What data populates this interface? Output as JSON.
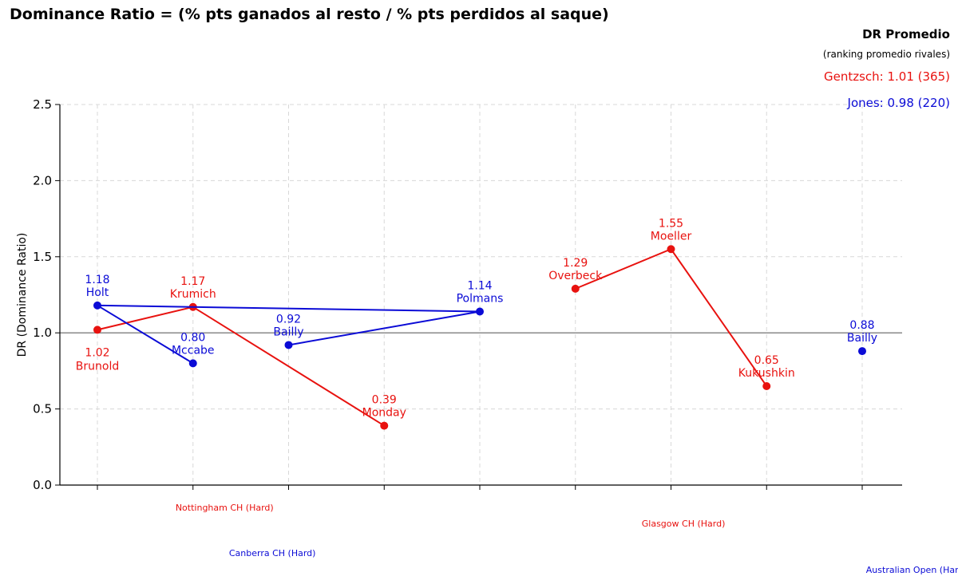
{
  "chart_data": {
    "type": "line",
    "title": "Dominance Ratio = (% pts ganados al resto / % pts perdidos al saque)",
    "xlabel": "",
    "ylabel": "DR (Dominance Ratio)",
    "ylim": [
      0,
      2.5
    ],
    "yticks": [
      0.0,
      0.5,
      1.0,
      1.5,
      2.0,
      2.5
    ],
    "ytick_labels": [
      "0.0",
      "0.5",
      "1.0",
      "1.5",
      "2.0",
      "2.5"
    ],
    "x_count": 9,
    "reference_line": 1.0,
    "grid": true,
    "colors": {
      "red": "#e8120f",
      "blue": "#0b0bd6",
      "ref": "#8a8a8a",
      "grid": "#d8d8d8"
    },
    "series": [
      {
        "name": "Gentzsch",
        "color": "#e8120f",
        "points": [
          {
            "x": 0,
            "y": 1.02,
            "value_label": "1.02",
            "opponent": "Brunold",
            "label_pos": "below"
          },
          {
            "x": 1,
            "y": 1.17,
            "value_label": "1.17",
            "opponent": "Krumich",
            "label_pos": "above"
          },
          {
            "x": 3,
            "y": 0.39,
            "value_label": "0.39",
            "opponent": "Monday",
            "label_pos": "above"
          }
        ]
      },
      {
        "name": "Jones",
        "color": "#0b0bd6",
        "points": [
          {
            "x": 1,
            "y": 0.8,
            "value_label": "0.80",
            "opponent": "Mccabe",
            "label_pos": "above"
          },
          {
            "x": 0,
            "y": 1.18,
            "value_label": "1.18",
            "opponent": "Holt",
            "label_pos": "above"
          },
          {
            "x": 4,
            "y": 1.14,
            "value_label": "1.14",
            "opponent": "Polmans",
            "label_pos": "above"
          },
          {
            "x": 2,
            "y": 0.92,
            "value_label": "0.92",
            "opponent": "Bailly",
            "label_pos": "above"
          }
        ]
      },
      {
        "name": "Gentzsch-2",
        "color": "#e8120f",
        "points": [
          {
            "x": 5,
            "y": 1.29,
            "value_label": "1.29",
            "opponent": "Overbeck",
            "label_pos": "above"
          },
          {
            "x": 6,
            "y": 1.55,
            "value_label": "1.55",
            "opponent": "Moeller",
            "label_pos": "above"
          },
          {
            "x": 7,
            "y": 0.65,
            "value_label": "0.65",
            "opponent": "Kukushkin",
            "label_pos": "above"
          }
        ]
      },
      {
        "name": "Jones-2",
        "color": "#0b0bd6",
        "points": [
          {
            "x": 8,
            "y": 0.88,
            "value_label": "0.88",
            "opponent": "Bailly",
            "label_pos": "above"
          }
        ]
      }
    ],
    "tournaments": [
      {
        "name": "Nottingham CH (Hard)",
        "x": 1.33,
        "row": 0,
        "color": "#e8120f"
      },
      {
        "name": "Canberra CH (Hard)",
        "x": 1.83,
        "row": 1,
        "color": "#0b0bd6"
      },
      {
        "name": "Glasgow CH (Hard)",
        "x": 6.13,
        "row": 2,
        "color": "#e8120f"
      },
      {
        "name": "Australian Open (Hard)",
        "x": 8.57,
        "row": 3,
        "color": "#0b0bd6"
      }
    ],
    "legend": {
      "title": "DR Promedio",
      "subtitle": "(ranking promedio rivales)",
      "entries": [
        {
          "text": "Gentzsch: 1.01 (365)",
          "color": "#e8120f"
        },
        {
          "text": "Jones: 0.98 (220)",
          "color": "#0b0bd6"
        }
      ],
      "placement": "top-right"
    }
  }
}
